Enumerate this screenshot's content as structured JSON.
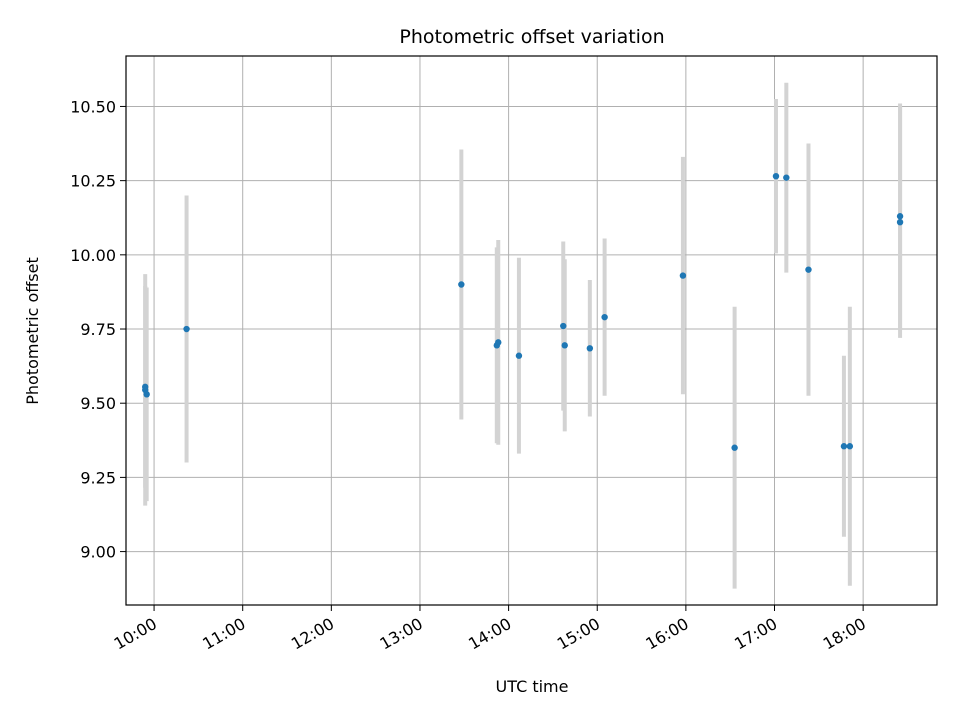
{
  "chart_data": {
    "type": "scatter",
    "title": "Photometric offset variation",
    "xlabel": "UTC time",
    "ylabel": "Photometric offset",
    "x_axis": "time",
    "xlim": [
      "09:41",
      "18:50"
    ],
    "ylim": [
      8.82,
      10.67
    ],
    "x_ticks": [
      "10:00",
      "11:00",
      "12:00",
      "13:00",
      "14:00",
      "15:00",
      "16:00",
      "17:00",
      "18:00"
    ],
    "y_ticks": [
      9.0,
      9.25,
      9.5,
      9.75,
      10.0,
      10.25,
      10.5
    ],
    "y_tick_labels": [
      "9.00",
      "9.25",
      "9.50",
      "9.75",
      "10.00",
      "10.25",
      "10.50"
    ],
    "grid": true,
    "colors": {
      "point": "#1f77b4",
      "errorbar": "#d3d3d3",
      "grid": "#b0b0b0",
      "axes": "#000000"
    },
    "series": [
      {
        "points": [
          {
            "x": "09:54",
            "y": 9.545,
            "err": 0.39
          },
          {
            "x": "09:54",
            "y": 9.555,
            "err": 0.34
          },
          {
            "x": "09:55",
            "y": 9.53,
            "err": 0.36
          },
          {
            "x": "10:22",
            "y": 9.75,
            "err": 0.45
          },
          {
            "x": "13:28",
            "y": 9.9,
            "err": 0.455
          },
          {
            "x": "13:52",
            "y": 9.695,
            "err": 0.33
          },
          {
            "x": "13:53",
            "y": 9.705,
            "err": 0.345
          },
          {
            "x": "14:07",
            "y": 9.66,
            "err": 0.33
          },
          {
            "x": "14:37",
            "y": 9.76,
            "err": 0.285
          },
          {
            "x": "14:38",
            "y": 9.695,
            "err": 0.29
          },
          {
            "x": "14:55",
            "y": 9.685,
            "err": 0.23
          },
          {
            "x": "15:05",
            "y": 9.79,
            "err": 0.265
          },
          {
            "x": "15:58",
            "y": 9.93,
            "err": 0.4
          },
          {
            "x": "16:33",
            "y": 9.35,
            "err": 0.475
          },
          {
            "x": "17:01",
            "y": 10.265,
            "err": 0.26
          },
          {
            "x": "17:08",
            "y": 10.26,
            "err": 0.32
          },
          {
            "x": "17:23",
            "y": 9.95,
            "err": 0.425
          },
          {
            "x": "17:47",
            "y": 9.355,
            "err": 0.305
          },
          {
            "x": "17:51",
            "y": 9.355,
            "err": 0.47
          },
          {
            "x": "18:25",
            "y": 10.11,
            "err": 0.39
          },
          {
            "x": "18:25",
            "y": 10.13,
            "err": 0.38
          }
        ]
      }
    ]
  }
}
